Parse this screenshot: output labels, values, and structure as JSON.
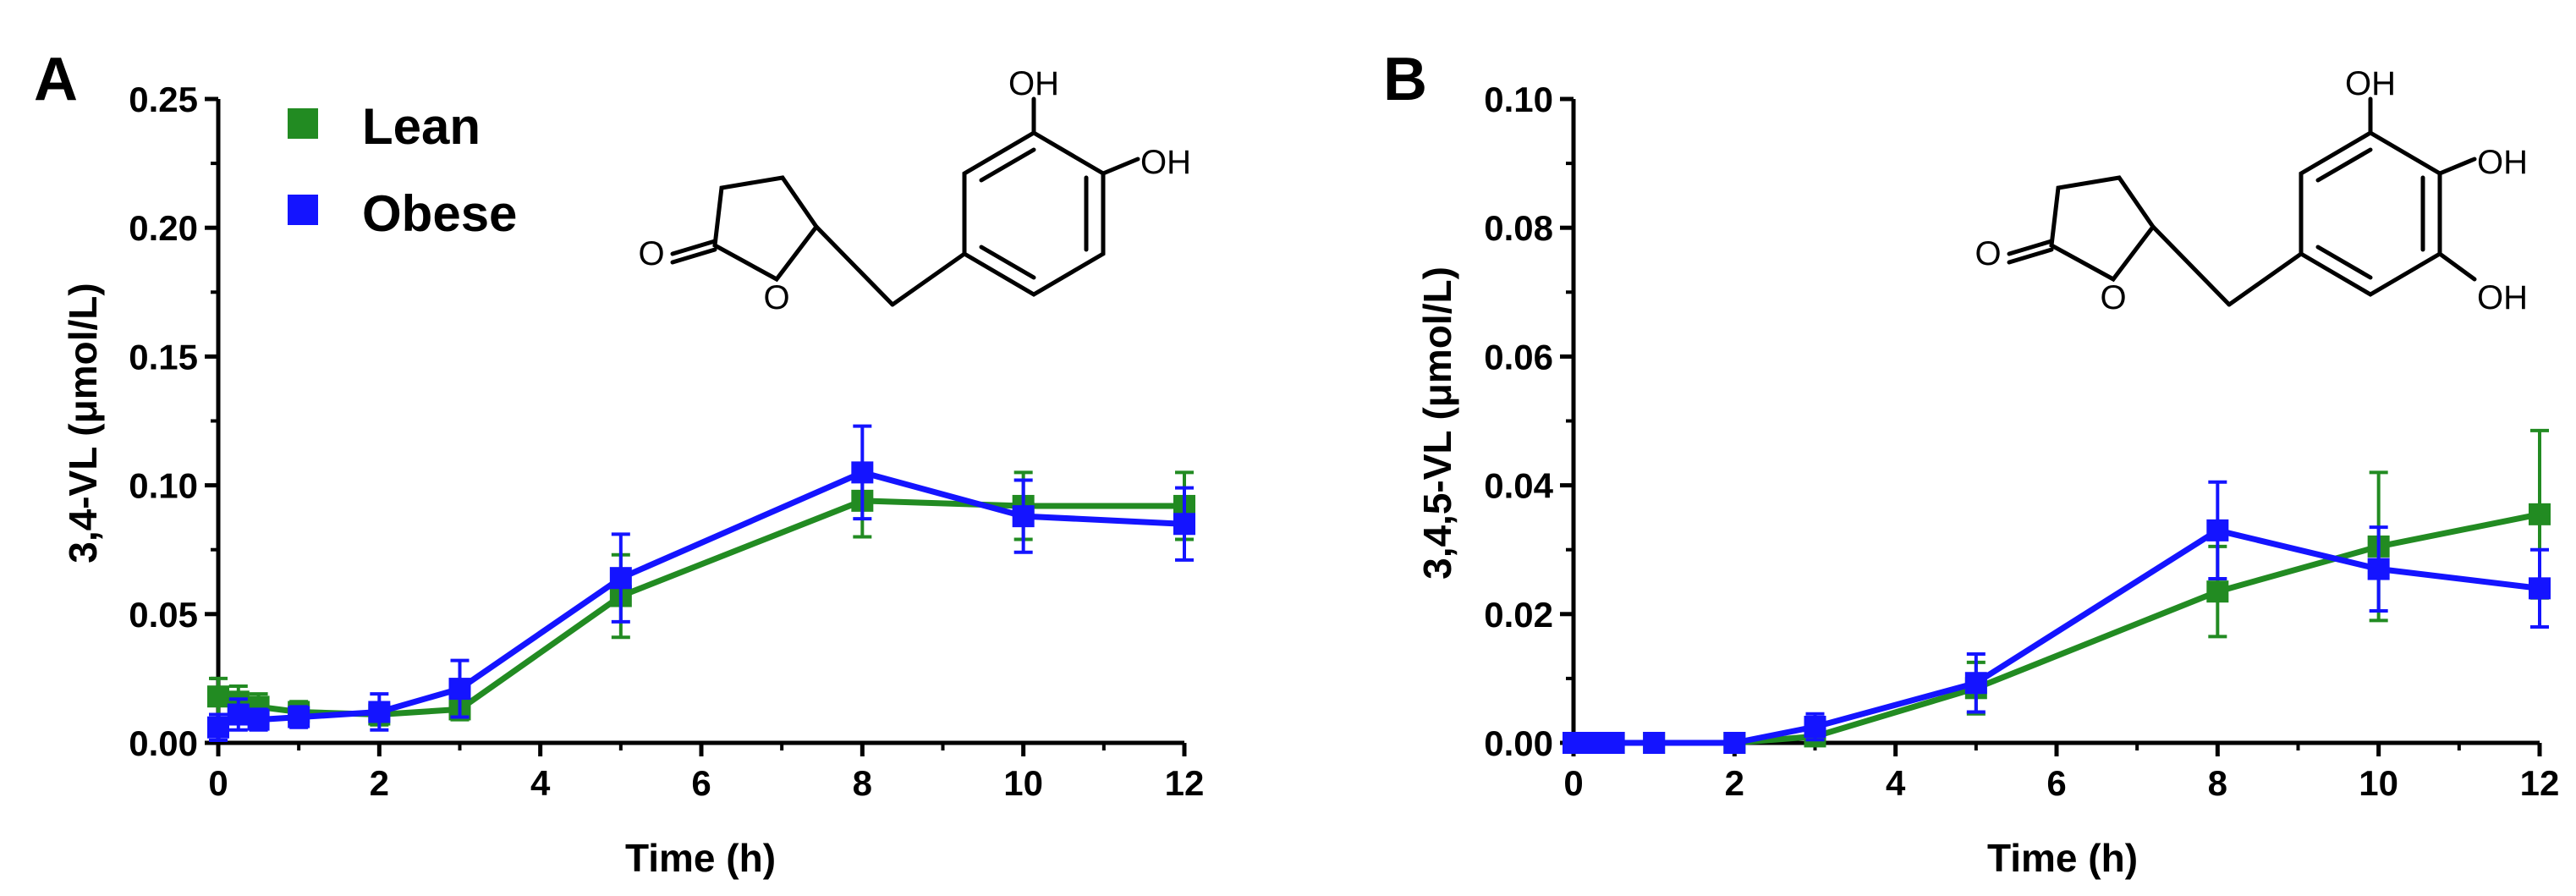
{
  "chart_data": [
    {
      "type": "line",
      "panel_label": "A",
      "xlabel": "Time (h)",
      "ylabel": "3,4-VL (μmol/L)",
      "xlim": [
        0,
        12
      ],
      "ylim": [
        0,
        0.25
      ],
      "xticks": [
        "0",
        "2",
        "4",
        "6",
        "8",
        "10",
        "12"
      ],
      "yticks": [
        "0.00",
        "0.05",
        "0.10",
        "0.15",
        "0.20",
        "0.25"
      ],
      "grid": false,
      "legend_position": "top-left",
      "series": [
        {
          "name": "Lean",
          "color": "#228B22",
          "x": [
            0,
            0.25,
            0.5,
            1,
            2,
            3,
            5,
            8,
            10,
            12
          ],
          "y": [
            0.018,
            0.016,
            0.014,
            0.012,
            0.011,
            0.013,
            0.057,
            0.094,
            0.092,
            0.092
          ],
          "err": [
            0.007,
            0.006,
            0.005,
            0.004,
            0.004,
            0.004,
            0.016,
            0.014,
            0.013,
            0.013
          ]
        },
        {
          "name": "Obese",
          "color": "#1414FF",
          "x": [
            0,
            0.25,
            0.5,
            1,
            2,
            3,
            5,
            8,
            10,
            12
          ],
          "y": [
            0.006,
            0.011,
            0.009,
            0.01,
            0.012,
            0.021,
            0.064,
            0.105,
            0.088,
            0.085
          ],
          "err": [
            0.005,
            0.006,
            0.004,
            0.004,
            0.007,
            0.011,
            0.017,
            0.018,
            0.014,
            0.014
          ]
        }
      ],
      "structure_labels": [
        "OH",
        "OH",
        "O",
        "O"
      ]
    },
    {
      "type": "line",
      "panel_label": "B",
      "xlabel": "Time (h)",
      "ylabel": "3,4,5-VL (μmol/L)",
      "xlim": [
        0,
        12
      ],
      "ylim": [
        0,
        0.1
      ],
      "xticks": [
        "0",
        "2",
        "4",
        "6",
        "8",
        "10",
        "12"
      ],
      "yticks": [
        "0.00",
        "0.02",
        "0.04",
        "0.06",
        "0.08",
        "0.10"
      ],
      "grid": false,
      "series": [
        {
          "name": "Lean",
          "color": "#228B22",
          "x": [
            0,
            0.25,
            0.5,
            1,
            2,
            3,
            5,
            8,
            10,
            12
          ],
          "y": [
            0,
            0,
            0,
            0,
            0,
            0.001,
            0.0085,
            0.0235,
            0.0305,
            0.0355
          ],
          "err": [
            0,
            0,
            0,
            0,
            0,
            0.001,
            0.004,
            0.007,
            0.0115,
            0.013
          ]
        },
        {
          "name": "Obese",
          "color": "#1414FF",
          "x": [
            0,
            0.25,
            0.5,
            1,
            2,
            3,
            5,
            8,
            10,
            12
          ],
          "y": [
            0,
            0,
            0,
            0,
            0,
            0.0025,
            0.0093,
            0.033,
            0.027,
            0.024
          ],
          "err": [
            0,
            0,
            0,
            0,
            0,
            0.002,
            0.0045,
            0.0075,
            0.0065,
            0.006
          ]
        }
      ],
      "structure_labels": [
        "OH",
        "OH",
        "OH",
        "O",
        "O"
      ]
    }
  ]
}
